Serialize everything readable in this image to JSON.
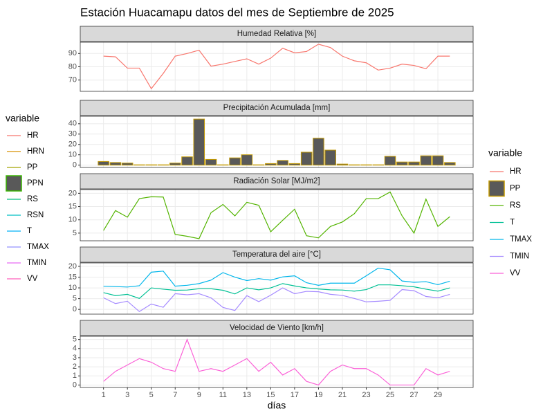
{
  "title": "Estación Huacamapu datos del mes de Septiembre de 2025",
  "x_label": "días",
  "xlim": [
    -0.95,
    31.95
  ],
  "xticks": [
    1,
    3,
    5,
    7,
    9,
    11,
    13,
    15,
    17,
    19,
    21,
    23,
    25,
    27,
    29
  ],
  "legends": [
    {
      "title": "variable",
      "entries": [
        {
          "name": "HR",
          "color": "#F8766D"
        },
        {
          "name": "HRN",
          "color": "#D89000"
        },
        {
          "name": "PP",
          "color": "#A3A500"
        },
        {
          "name": "PPN",
          "color": "#39B600",
          "fill": "#595959"
        },
        {
          "name": "RS",
          "color": "#00BF7D"
        },
        {
          "name": "RSN",
          "color": "#00BFC4"
        },
        {
          "name": "T",
          "color": "#00B0F6"
        },
        {
          "name": "TMAX",
          "color": "#9590FF"
        },
        {
          "name": "TMIN",
          "color": "#E76BF3"
        },
        {
          "name": "VV",
          "color": "#FF62BC"
        }
      ]
    },
    {
      "title": "variable",
      "entries": [
        {
          "name": "HR",
          "color": "#F8766D"
        },
        {
          "name": "PP",
          "color": "#C49A00",
          "fill": "#595959"
        },
        {
          "name": "RS",
          "color": "#53B400"
        },
        {
          "name": "T",
          "color": "#00C094"
        },
        {
          "name": "TMAX",
          "color": "#00B6EB"
        },
        {
          "name": "TMIN",
          "color": "#A58AFF"
        },
        {
          "name": "VV",
          "color": "#FB61D7"
        }
      ]
    }
  ],
  "chart_data": [
    {
      "type": "line",
      "title": "Humedad Relativa [%]",
      "x": [
        1,
        2,
        3,
        4,
        5,
        6,
        7,
        8,
        9,
        10,
        11,
        12,
        13,
        14,
        15,
        16,
        17,
        18,
        19,
        20,
        21,
        22,
        23,
        24,
        25,
        26,
        27,
        28,
        29,
        30
      ],
      "ylim": [
        61.5,
        98.5
      ],
      "yticks": [
        70,
        80,
        90
      ],
      "series": [
        {
          "name": "HR",
          "color": "#F8766D",
          "values": [
            88,
            87.5,
            79,
            79,
            63.5,
            75,
            88,
            90,
            92.5,
            80.5,
            82,
            84,
            86,
            82,
            86.5,
            94,
            90.5,
            91.5,
            97,
            94.5,
            88,
            84.5,
            83,
            77.5,
            79,
            82,
            81,
            78.5,
            88,
            88
          ]
        }
      ]
    },
    {
      "type": "bar",
      "title": "Precipitación Acumulada [mm]",
      "x": [
        1,
        2,
        3,
        4,
        5,
        6,
        7,
        8,
        9,
        10,
        11,
        12,
        13,
        14,
        15,
        16,
        17,
        18,
        19,
        20,
        21,
        22,
        23,
        24,
        25,
        26,
        27,
        28,
        29,
        30
      ],
      "ylim": [
        -2.25,
        47.25
      ],
      "yticks": [
        0,
        10,
        20,
        30,
        40
      ],
      "series": [
        {
          "name": "PP",
          "color": "#C49A00",
          "fill": "#595959",
          "values": [
            3.5,
            2.5,
            2,
            0.3,
            0.3,
            0.3,
            2,
            8,
            44.5,
            5.5,
            0.3,
            7,
            10,
            0.3,
            1.5,
            4.5,
            1.5,
            12.5,
            26,
            14.5,
            1,
            0.3,
            0.3,
            0.3,
            8.5,
            3,
            3,
            9,
            9,
            2.5
          ]
        }
      ]
    },
    {
      "type": "line",
      "title": "Radiación Solar [MJ/m2]",
      "x": [
        1,
        2,
        3,
        4,
        5,
        6,
        7,
        8,
        9,
        10,
        11,
        12,
        13,
        14,
        15,
        16,
        17,
        18,
        19,
        20,
        21,
        22,
        23,
        24,
        25,
        26,
        27,
        28,
        29,
        30
      ],
      "ylim": [
        2.1,
        21.4
      ],
      "yticks": [
        5,
        10,
        15,
        20
      ],
      "series": [
        {
          "name": "RS",
          "color": "#53B400",
          "values": [
            6,
            13.5,
            11,
            18,
            18.7,
            18.6,
            4.5,
            3.8,
            2.9,
            12.7,
            15.8,
            11.5,
            16.6,
            15.5,
            5.5,
            9.8,
            14,
            4,
            3.2,
            7.5,
            9.2,
            12.3,
            18,
            18,
            20.5,
            11.5,
            5,
            17.8,
            7.5,
            11.2
          ]
        }
      ]
    },
    {
      "type": "line",
      "title": "Temperatura del aire [°C]",
      "x": [
        1,
        2,
        3,
        4,
        5,
        6,
        7,
        8,
        9,
        10,
        11,
        12,
        13,
        14,
        15,
        16,
        17,
        18,
        19,
        20,
        21,
        22,
        23,
        24,
        25,
        26,
        27,
        28,
        29,
        30
      ],
      "ylim": [
        -2.2,
        21.6
      ],
      "yticks": [
        0,
        5,
        10,
        15,
        20
      ],
      "series": [
        {
          "name": "T",
          "color": "#00C094",
          "values": [
            7.8,
            6.4,
            7,
            5.1,
            10,
            9.4,
            8.9,
            9,
            9.6,
            9.6,
            8.9,
            7.2,
            10,
            9.1,
            10,
            12,
            10.9,
            10,
            9.5,
            9.1,
            9,
            8.5,
            9.2,
            11.4,
            11.4,
            11,
            10.5,
            9.4,
            8.5,
            10
          ]
        },
        {
          "name": "TMAX",
          "color": "#00B6EB",
          "values": [
            10.8,
            10.6,
            10.4,
            11,
            17.3,
            17.8,
            10.8,
            11.2,
            12,
            13.6,
            17.1,
            15,
            13.4,
            14.3,
            13.6,
            15.1,
            15.6,
            12.4,
            11.2,
            12.2,
            12.2,
            12.2,
            15.6,
            19.2,
            18.4,
            13.2,
            12.6,
            12.9,
            11.5,
            13.1
          ]
        },
        {
          "name": "TMIN",
          "color": "#A58AFF",
          "values": [
            5.4,
            2.7,
            3.8,
            -1,
            2.5,
            1,
            7.3,
            6.8,
            7.3,
            5.4,
            0.9,
            -0.5,
            6.4,
            3.6,
            6.6,
            10,
            7.3,
            8.4,
            8.2,
            7,
            6.5,
            5.1,
            3.5,
            3.8,
            4.2,
            9.2,
            8.7,
            6,
            5.4,
            7
          ]
        }
      ]
    },
    {
      "type": "line",
      "title": "Velocidad de Viento [km/h]",
      "x": [
        1,
        2,
        3,
        4,
        5,
        6,
        7,
        8,
        9,
        10,
        11,
        12,
        13,
        14,
        15,
        16,
        17,
        18,
        19,
        20,
        21,
        22,
        23,
        24,
        25,
        26,
        27,
        28,
        29,
        30
      ],
      "ylim": [
        -0.27,
        5.35
      ],
      "yticks": [
        0,
        1,
        2,
        3,
        4,
        5
      ],
      "series": [
        {
          "name": "VV",
          "color": "#FB61D7",
          "values": [
            0.4,
            1.5,
            2.2,
            2.9,
            2.5,
            1.8,
            1.5,
            5,
            1.5,
            1.8,
            1.5,
            2.2,
            2.9,
            1.5,
            2.5,
            1.1,
            1.8,
            0.4,
            0,
            1.5,
            2.2,
            1.8,
            1.8,
            1.1,
            0,
            0,
            0,
            1.8,
            1.1,
            1.5
          ]
        }
      ]
    }
  ]
}
